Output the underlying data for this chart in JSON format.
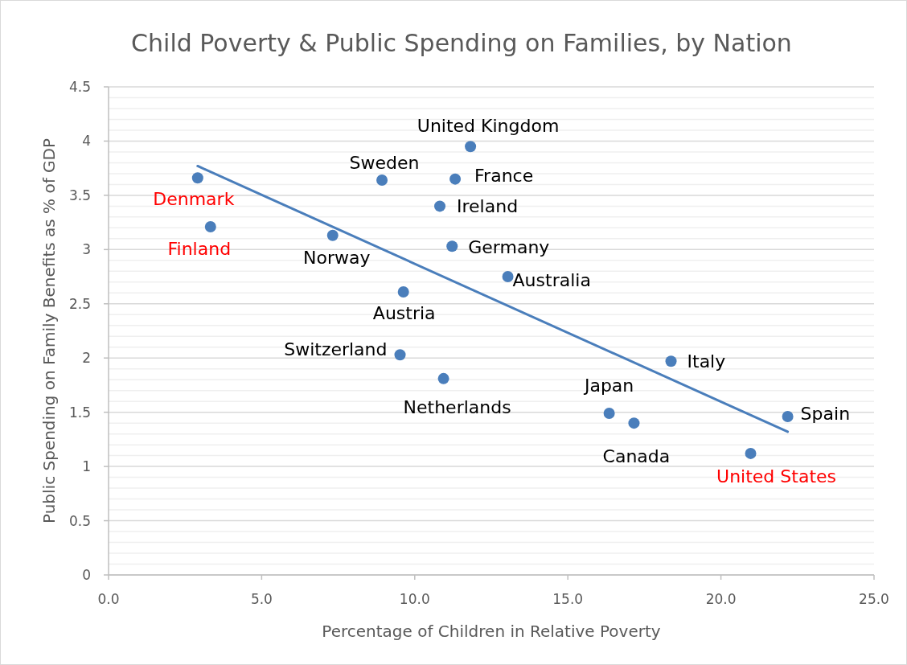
{
  "chart_data": {
    "type": "scatter",
    "title": "Child Poverty & Public Spending on Families, by Nation",
    "xlabel": "Percentage of Children in Relative Poverty",
    "ylabel": "Public Spending on Family Benefits as % of GDP",
    "xlim": [
      0,
      25
    ],
    "xticks": [
      {
        "value": 0,
        "label": "0.0"
      },
      {
        "value": 5,
        "label": "5.0"
      },
      {
        "value": 10,
        "label": "10.0"
      },
      {
        "value": 15,
        "label": "15.0"
      },
      {
        "value": 20,
        "label": "20.0"
      },
      {
        "value": 25,
        "label": "25.0"
      }
    ],
    "ylim": [
      0,
      4.5
    ],
    "yticks": [
      0,
      0.5,
      1,
      1.5,
      2,
      2.5,
      3,
      3.5,
      4,
      4.5
    ],
    "grid": "y",
    "series": [
      {
        "color": "#4a7ebb",
        "marker": "circle",
        "x": [
          2.91,
          3.33,
          7.32,
          8.93,
          11.82,
          11.32,
          10.82,
          11.22,
          13.04,
          9.63,
          9.52,
          10.94,
          18.37,
          16.35,
          17.16,
          22.18,
          20.97
        ],
        "values": [
          3.66,
          3.21,
          3.13,
          3.64,
          3.95,
          3.65,
          3.4,
          3.03,
          2.75,
          2.61,
          2.03,
          1.81,
          1.97,
          1.49,
          1.4,
          1.46,
          1.12
        ]
      },
      {
        "type": "line",
        "color": "#4a7ebb",
        "marker": "none",
        "x": [
          2.91,
          22.18
        ],
        "values": [
          3.77,
          1.32
        ]
      }
    ],
    "annotations": [
      {
        "text": "Denmark",
        "x": 2.91,
        "y": 3.66
      },
      {
        "text": "Finland",
        "x": 3.33,
        "y": 3.21
      },
      {
        "text": "Norway",
        "x": 7.32,
        "y": 3.13
      },
      {
        "text": "Sweden",
        "x": 8.93,
        "y": 3.64
      },
      {
        "text": "United Kingdom",
        "x": 11.82,
        "y": 3.95
      },
      {
        "text": "France",
        "x": 11.32,
        "y": 3.65
      },
      {
        "text": "Ireland",
        "x": 10.82,
        "y": 3.4
      },
      {
        "text": "Germany",
        "x": 11.22,
        "y": 3.03
      },
      {
        "text": "Australia",
        "x": 13.04,
        "y": 2.75
      },
      {
        "text": "Austria",
        "x": 9.63,
        "y": 2.61
      },
      {
        "text": "Switzerland",
        "x": 9.52,
        "y": 2.03
      },
      {
        "text": "Netherlands",
        "x": 10.94,
        "y": 1.81
      },
      {
        "text": "Italy",
        "x": 18.37,
        "y": 1.97
      },
      {
        "text": "Japan",
        "x": 16.35,
        "y": 1.49
      },
      {
        "text": "Canada",
        "x": 17.16,
        "y": 1.4
      },
      {
        "text": "Spain",
        "x": 22.18,
        "y": 1.46
      },
      {
        "text": "United States",
        "x": 20.97,
        "y": 1.12
      }
    ]
  }
}
